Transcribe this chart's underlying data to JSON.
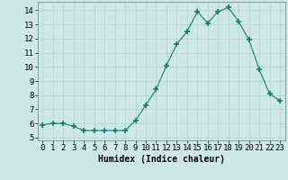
{
  "x": [
    0,
    1,
    2,
    3,
    4,
    5,
    6,
    7,
    8,
    9,
    10,
    11,
    12,
    13,
    14,
    15,
    16,
    17,
    18,
    19,
    20,
    21,
    22,
    23
  ],
  "y": [
    5.9,
    6.0,
    6.0,
    5.8,
    5.5,
    5.5,
    5.5,
    5.5,
    5.5,
    6.2,
    7.3,
    8.4,
    10.1,
    11.6,
    12.5,
    13.9,
    13.1,
    13.9,
    14.2,
    13.2,
    11.9,
    9.8,
    8.1,
    7.6
  ],
  "x_labels": [
    "0",
    "1",
    "2",
    "3",
    "4",
    "5",
    "6",
    "7",
    "8",
    "9",
    "10",
    "11",
    "12",
    "13",
    "14",
    "15",
    "16",
    "17",
    "18",
    "19",
    "20",
    "21",
    "22",
    "23"
  ],
  "xlabel": "Humidex (Indice chaleur)",
  "ylim": [
    4.8,
    14.6
  ],
  "yticks": [
    5,
    6,
    7,
    8,
    9,
    10,
    11,
    12,
    13,
    14
  ],
  "line_color": "#1a7a6e",
  "marker": "+",
  "marker_size": 4,
  "marker_lw": 1.2,
  "line_width": 0.8,
  "background_color": "#cce8e8",
  "grid_color": "#b0d0d0",
  "xlabel_fontsize": 7,
  "tick_fontsize": 6.5
}
